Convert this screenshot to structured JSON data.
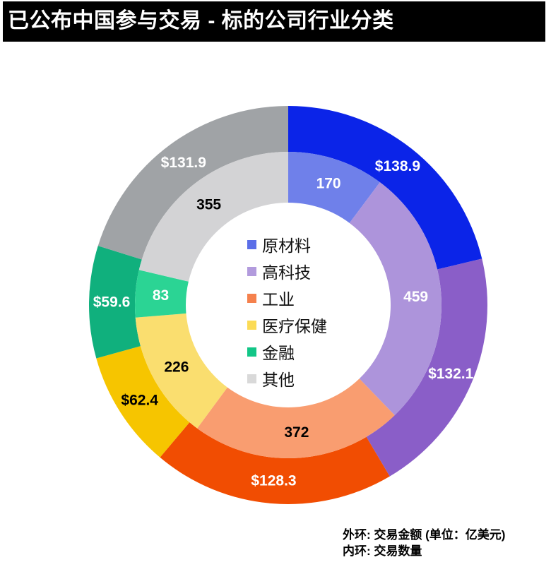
{
  "header": {
    "title": "已公布中国参与交易 - 标的公司行业分类"
  },
  "footnote": {
    "line1": "外环: 交易金额 (单位：亿美元)",
    "line2": "内环: 交易数量"
  },
  "chart_data": {
    "type": "donut",
    "title": "已公布中国参与交易 - 标的公司行业分类",
    "categories": [
      "原材料",
      "高科技",
      "工业",
      "医疗保健",
      "金融",
      "其他"
    ],
    "legend": {
      "position": "center",
      "items": [
        {
          "label": "原材料",
          "color": "#5b6ee8"
        },
        {
          "label": "高科技",
          "color": "#b29bdd"
        },
        {
          "label": "工业",
          "color": "#f5814d"
        },
        {
          "label": "医疗保健",
          "color": "#fbdb56"
        },
        {
          "label": "金融",
          "color": "#12c687"
        },
        {
          "label": "其他",
          "color": "#d9d9d9"
        }
      ]
    },
    "rings": [
      {
        "name": "outer",
        "meaning": "交易金额 (单位：亿美元)",
        "values": [
          138.9,
          132.1,
          128.3,
          62.4,
          59.6,
          131.9
        ],
        "labels": [
          "$138.9",
          "$132.1",
          "$128.3",
          "$62.4",
          "$59.6",
          "$131.9"
        ],
        "colors": [
          "#0b24e8",
          "#8a5ec8",
          "#f14d02",
          "#f6c500",
          "#10b07d",
          "#a0a3a6"
        ],
        "label_colors": [
          "#ffffff",
          "#ffffff",
          "#ffffff",
          "#000000",
          "#ffffff",
          "#ffffff"
        ]
      },
      {
        "name": "inner",
        "meaning": "交易数量",
        "values": [
          170,
          459,
          372,
          226,
          83,
          355
        ],
        "labels": [
          "170",
          "459",
          "372",
          "226",
          "83",
          "355"
        ],
        "colors": [
          "#6f80ea",
          "#ad94db",
          "#f99d70",
          "#fade6f",
          "#2bd494",
          "#d3d3d5"
        ],
        "label_colors": [
          "#ffffff",
          "#ffffff",
          "#000000",
          "#000000",
          "#ffffff",
          "#000000"
        ]
      }
    ]
  }
}
